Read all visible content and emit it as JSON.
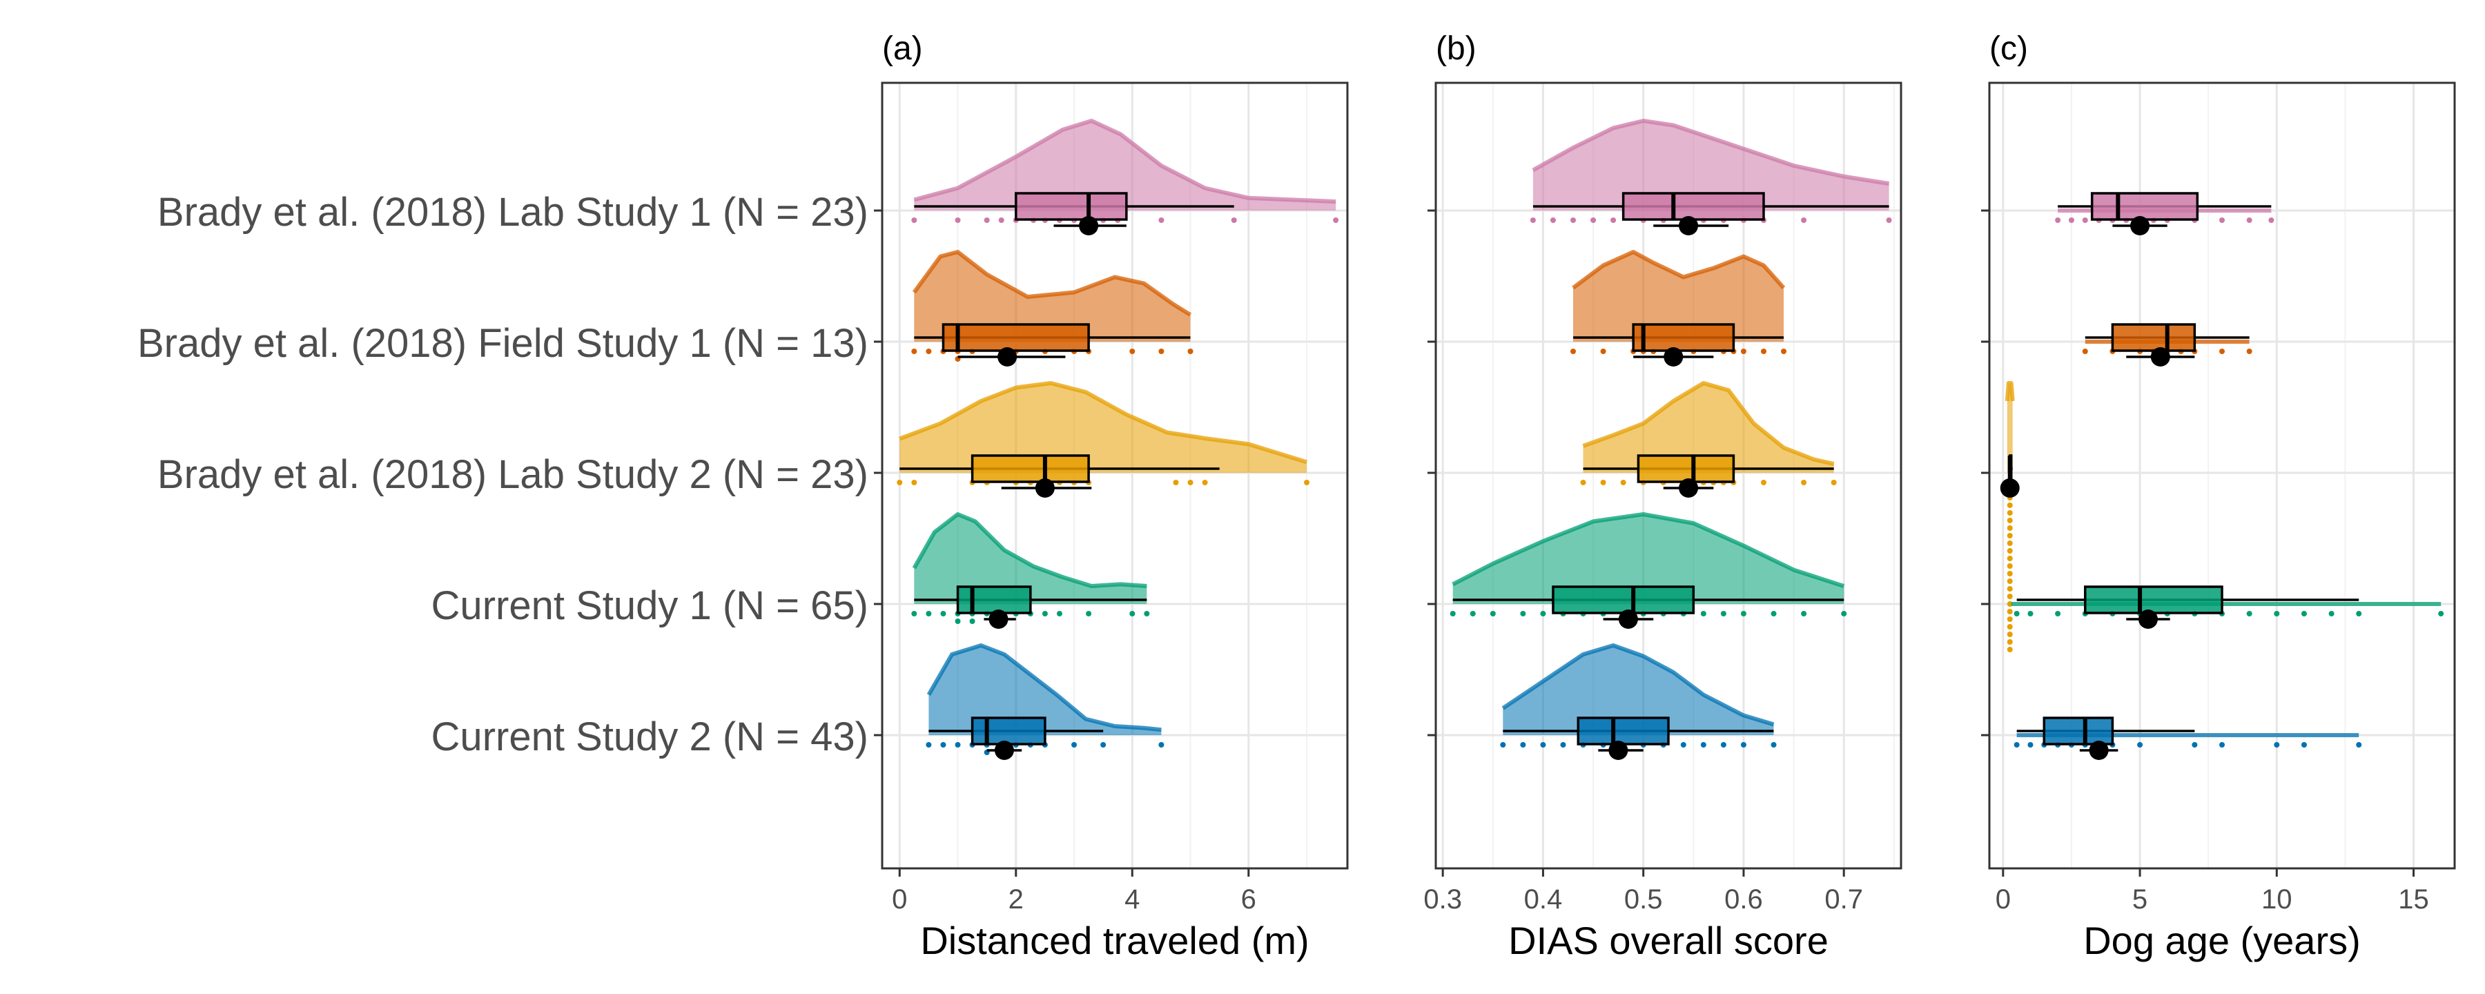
{
  "chart_data": [
    {
      "type": "raincloud",
      "panel_label": "(a)",
      "xlabel": "Distanced traveled (m)",
      "xlim": [
        -0.3,
        7.7
      ],
      "xticks": [
        0,
        2,
        4,
        6
      ],
      "tick_labels": [
        "0",
        "2",
        "4",
        "6"
      ],
      "grid": true,
      "series": [
        {
          "name": "Brady et al. (2018) Lab Study 1 (N = 23)",
          "color": "#CC79A7",
          "box": {
            "min": 0.25,
            "q1": 2.0,
            "median": 3.25,
            "q3": 3.9,
            "max": 5.75
          },
          "mean": 3.25,
          "ci": [
            2.65,
            3.9
          ],
          "points": [
            0.25,
            1.0,
            1.5,
            1.75,
            2.0,
            2.3,
            2.5,
            2.75,
            3.0,
            3.25,
            3.5,
            3.75,
            4.5,
            5.75,
            7.5
          ],
          "density": {
            "x": [
              0.25,
              1.0,
              2.0,
              2.8,
              3.3,
              3.8,
              4.5,
              5.25,
              6.0,
              6.75,
              7.5
            ],
            "y": [
              0.12,
              0.25,
              0.6,
              0.9,
              1.0,
              0.85,
              0.5,
              0.25,
              0.14,
              0.12,
              0.1
            ]
          }
        },
        {
          "name": "Brady et al. (2018) Field Study 1 (N = 13)",
          "color": "#D55E00",
          "box": {
            "min": 0.25,
            "q1": 0.75,
            "median": 1.0,
            "q3": 3.25,
            "max": 5.0
          },
          "mean": 1.85,
          "ci": [
            1.0,
            2.85
          ],
          "points": [
            0.25,
            0.5,
            0.75,
            1.0,
            1.0,
            1.25,
            2.0,
            2.5,
            3.0,
            3.25,
            4.0,
            4.5,
            5.0
          ],
          "density": {
            "x": [
              0.25,
              0.7,
              1.0,
              1.5,
              2.2,
              3.0,
              3.7,
              4.2,
              4.7,
              5.0
            ],
            "y": [
              0.55,
              0.95,
              1.0,
              0.75,
              0.5,
              0.55,
              0.72,
              0.65,
              0.42,
              0.3
            ]
          }
        },
        {
          "name": "Brady et al. (2018) Lab Study 2 (N = 23)",
          "color": "#E69F00",
          "box": {
            "min": 0.0,
            "q1": 1.25,
            "median": 2.5,
            "q3": 3.25,
            "max": 5.5
          },
          "mean": 2.5,
          "ci": [
            1.75,
            3.3
          ],
          "points": [
            0.0,
            0.25,
            1.25,
            1.5,
            2.0,
            2.25,
            2.5,
            2.5,
            2.75,
            3.0,
            3.25,
            4.75,
            5.0,
            5.25,
            7.0
          ],
          "density": {
            "x": [
              0.0,
              0.7,
              1.4,
              2.0,
              2.6,
              3.2,
              3.9,
              4.6,
              5.3,
              6.0,
              6.5,
              7.0
            ],
            "y": [
              0.38,
              0.55,
              0.8,
              0.95,
              1.0,
              0.9,
              0.65,
              0.45,
              0.38,
              0.32,
              0.22,
              0.12
            ]
          }
        },
        {
          "name": "Current Study 1 (N = 65)",
          "color": "#009E73",
          "box": {
            "min": 0.25,
            "q1": 1.0,
            "median": 1.25,
            "q3": 2.25,
            "max": 4.25
          },
          "mean": 1.7,
          "ci": [
            1.45,
            2.0
          ],
          "points": [
            0.25,
            0.5,
            0.75,
            1.0,
            1.0,
            1.25,
            1.25,
            1.5,
            1.75,
            2.0,
            2.25,
            2.5,
            2.75,
            3.25,
            4.0,
            4.25
          ],
          "density": {
            "x": [
              0.25,
              0.6,
              1.0,
              1.3,
              1.8,
              2.3,
              2.8,
              3.3,
              3.8,
              4.25
            ],
            "y": [
              0.4,
              0.8,
              1.0,
              0.92,
              0.6,
              0.42,
              0.3,
              0.2,
              0.22,
              0.2
            ]
          }
        },
        {
          "name": "Current Study 2 (N = 43)",
          "color": "#0072B2",
          "box": {
            "min": 0.5,
            "q1": 1.25,
            "median": 1.5,
            "q3": 2.5,
            "max": 3.5
          },
          "mean": 1.8,
          "ci": [
            1.5,
            2.1
          ],
          "points": [
            0.5,
            0.75,
            1.0,
            1.25,
            1.5,
            1.5,
            1.75,
            2.0,
            2.25,
            2.5,
            3.0,
            3.5,
            4.5
          ],
          "density": {
            "x": [
              0.5,
              0.9,
              1.4,
              1.8,
              2.2,
              2.7,
              3.2,
              3.7,
              4.2,
              4.5
            ],
            "y": [
              0.45,
              0.9,
              1.0,
              0.9,
              0.7,
              0.45,
              0.18,
              0.1,
              0.08,
              0.06
            ]
          }
        }
      ]
    },
    {
      "type": "raincloud",
      "panel_label": "(b)",
      "xlabel": "DIAS overall score",
      "xlim": [
        0.293,
        0.757
      ],
      "xticks": [
        0.3,
        0.4,
        0.5,
        0.6,
        0.7
      ],
      "tick_labels": [
        "0.3",
        "0.4",
        "0.5",
        "0.6",
        "0.7"
      ],
      "grid": true,
      "series": [
        {
          "name": "Brady et al. (2018) Lab Study 1 (N = 23)",
          "color": "#CC79A7",
          "box": {
            "min": 0.39,
            "q1": 0.48,
            "median": 0.53,
            "q3": 0.62,
            "max": 0.745
          },
          "mean": 0.545,
          "ci": [
            0.51,
            0.585
          ],
          "points": [
            0.39,
            0.41,
            0.43,
            0.45,
            0.47,
            0.5,
            0.52,
            0.54,
            0.56,
            0.58,
            0.6,
            0.62,
            0.66,
            0.745
          ],
          "density": {
            "x": [
              0.39,
              0.43,
              0.47,
              0.5,
              0.53,
              0.57,
              0.61,
              0.65,
              0.7,
              0.745
            ],
            "y": [
              0.45,
              0.7,
              0.92,
              1.0,
              0.95,
              0.8,
              0.65,
              0.5,
              0.38,
              0.3
            ]
          }
        },
        {
          "name": "Brady et al. (2018) Field Study 1 (N = 13)",
          "color": "#D55E00",
          "box": {
            "min": 0.43,
            "q1": 0.49,
            "median": 0.5,
            "q3": 0.59,
            "max": 0.64
          },
          "mean": 0.53,
          "ci": [
            0.49,
            0.57
          ],
          "points": [
            0.43,
            0.46,
            0.49,
            0.5,
            0.51,
            0.53,
            0.55,
            0.58,
            0.59,
            0.6,
            0.62,
            0.64
          ],
          "density": {
            "x": [
              0.43,
              0.46,
              0.49,
              0.51,
              0.54,
              0.57,
              0.6,
              0.62,
              0.64
            ],
            "y": [
              0.6,
              0.85,
              1.0,
              0.88,
              0.72,
              0.82,
              0.95,
              0.85,
              0.6
            ]
          }
        },
        {
          "name": "Brady et al. (2018) Lab Study 2 (N = 23)",
          "color": "#E69F00",
          "box": {
            "min": 0.44,
            "q1": 0.495,
            "median": 0.55,
            "q3": 0.59,
            "max": 0.69
          },
          "mean": 0.545,
          "ci": [
            0.52,
            0.57
          ],
          "points": [
            0.44,
            0.46,
            0.48,
            0.5,
            0.52,
            0.54,
            0.55,
            0.56,
            0.57,
            0.58,
            0.59,
            0.62,
            0.66,
            0.69
          ],
          "density": {
            "x": [
              0.44,
              0.47,
              0.5,
              0.53,
              0.56,
              0.585,
              0.61,
              0.64,
              0.67,
              0.69
            ],
            "y": [
              0.3,
              0.42,
              0.55,
              0.8,
              1.0,
              0.92,
              0.55,
              0.28,
              0.15,
              0.1
            ]
          }
        },
        {
          "name": "Current Study 1 (N = 65)",
          "color": "#009E73",
          "box": {
            "min": 0.31,
            "q1": 0.41,
            "median": 0.49,
            "q3": 0.55,
            "max": 0.7
          },
          "mean": 0.485,
          "ci": [
            0.46,
            0.51
          ],
          "points": [
            0.31,
            0.33,
            0.35,
            0.38,
            0.4,
            0.42,
            0.44,
            0.46,
            0.48,
            0.49,
            0.5,
            0.52,
            0.54,
            0.56,
            0.58,
            0.6,
            0.63,
            0.66,
            0.7
          ],
          "density": {
            "x": [
              0.31,
              0.35,
              0.4,
              0.45,
              0.5,
              0.55,
              0.6,
              0.65,
              0.7
            ],
            "y": [
              0.22,
              0.45,
              0.7,
              0.92,
              1.0,
              0.9,
              0.65,
              0.38,
              0.2
            ]
          }
        },
        {
          "name": "Current Study 2 (N = 43)",
          "color": "#0072B2",
          "box": {
            "min": 0.36,
            "q1": 0.435,
            "median": 0.47,
            "q3": 0.525,
            "max": 0.63
          },
          "mean": 0.475,
          "ci": [
            0.455,
            0.5
          ],
          "points": [
            0.36,
            0.38,
            0.4,
            0.42,
            0.44,
            0.46,
            0.47,
            0.48,
            0.5,
            0.52,
            0.54,
            0.56,
            0.58,
            0.6,
            0.63
          ],
          "density": {
            "x": [
              0.36,
              0.4,
              0.44,
              0.47,
              0.5,
              0.53,
              0.56,
              0.6,
              0.63
            ],
            "y": [
              0.3,
              0.6,
              0.9,
              1.0,
              0.88,
              0.7,
              0.45,
              0.22,
              0.12
            ]
          }
        }
      ]
    },
    {
      "type": "raincloud",
      "panel_label": "(c)",
      "xlabel": "Dog age (years)",
      "xlim": [
        -0.5,
        16.5
      ],
      "xticks": [
        0,
        5,
        10,
        15
      ],
      "tick_labels": [
        "0",
        "5",
        "10",
        "15"
      ],
      "grid": true,
      "series": [
        {
          "name": "Brady et al. (2018) Lab Study 1 (N = 23)",
          "color": "#CC79A7",
          "box": {
            "min": 2.0,
            "q1": 3.25,
            "median": 4.2,
            "q3": 7.1,
            "max": 9.8
          },
          "mean": 5.0,
          "ci": [
            4.0,
            6.0
          ],
          "points": [
            2.0,
            2.5,
            3.0,
            3.5,
            4.0,
            4.5,
            5.0,
            5.5,
            6.0,
            7.0,
            8.0,
            9.0,
            9.8
          ],
          "density": {
            "x": [
              2.0,
              9.8
            ],
            "y": [
              0.0,
              0.0
            ]
          }
        },
        {
          "name": "Brady et al. (2018) Field Study 1 (N = 13)",
          "color": "#D55E00",
          "box": {
            "min": 3.0,
            "q1": 4.0,
            "median": 6.0,
            "q3": 7.0,
            "max": 9.0
          },
          "mean": 5.75,
          "ci": [
            4.5,
            7.0
          ],
          "points": [
            3.0,
            4.0,
            5.0,
            5.5,
            6.0,
            6.5,
            7.0,
            8.0,
            9.0
          ],
          "density": {
            "x": [
              3.0,
              9.0
            ],
            "y": [
              0.0,
              0.0
            ]
          }
        },
        {
          "name": "Brady et al. (2018) Lab Study 2 (N = 23)",
          "color": "#E69F00",
          "box": {
            "min": 0.25,
            "q1": 0.25,
            "median": 0.25,
            "q3": 0.3,
            "max": 0.35
          },
          "mean": 0.25,
          "ci": [
            0.22,
            0.28
          ],
          "points": [
            0.25,
            0.25,
            0.25,
            0.25,
            0.25,
            0.25,
            0.25,
            0.25,
            0.25,
            0.25,
            0.25,
            0.25,
            0.25,
            0.25,
            0.25,
            0.25,
            0.25,
            0.25,
            0.25,
            0.25,
            0.25,
            0.25,
            0.25
          ],
          "density": {
            "x": [
              0.15,
              0.2,
              0.25,
              0.3,
              0.35
            ],
            "y": [
              0.8,
              1.0,
              1.0,
              1.0,
              0.8
            ]
          }
        },
        {
          "name": "Current Study 1 (N = 65)",
          "color": "#009E73",
          "box": {
            "min": 0.5,
            "q1": 3.0,
            "median": 5.0,
            "q3": 8.0,
            "max": 13.0
          },
          "mean": 5.3,
          "ci": [
            4.5,
            6.1
          ],
          "points": [
            0.5,
            1.0,
            2.0,
            3.0,
            4.0,
            5.0,
            6.0,
            7.0,
            8.0,
            9.0,
            10.0,
            11.0,
            12.0,
            13.0,
            16.0
          ],
          "density": {
            "x": [
              0.3,
              16.0
            ],
            "y": [
              0.0,
              0.0
            ]
          }
        },
        {
          "name": "Current Study 2 (N = 43)",
          "color": "#0072B2",
          "box": {
            "min": 0.5,
            "q1": 1.5,
            "median": 3.0,
            "q3": 4.0,
            "max": 7.0
          },
          "mean": 3.5,
          "ci": [
            2.8,
            4.2
          ],
          "points": [
            0.5,
            1.0,
            1.5,
            2.0,
            2.5,
            3.0,
            3.5,
            4.0,
            5.0,
            7.0,
            8.0,
            10.0,
            11.0,
            13.0
          ],
          "density": {
            "x": [
              0.5,
              13.0
            ],
            "y": [
              0.0,
              0.0
            ]
          }
        }
      ]
    }
  ]
}
